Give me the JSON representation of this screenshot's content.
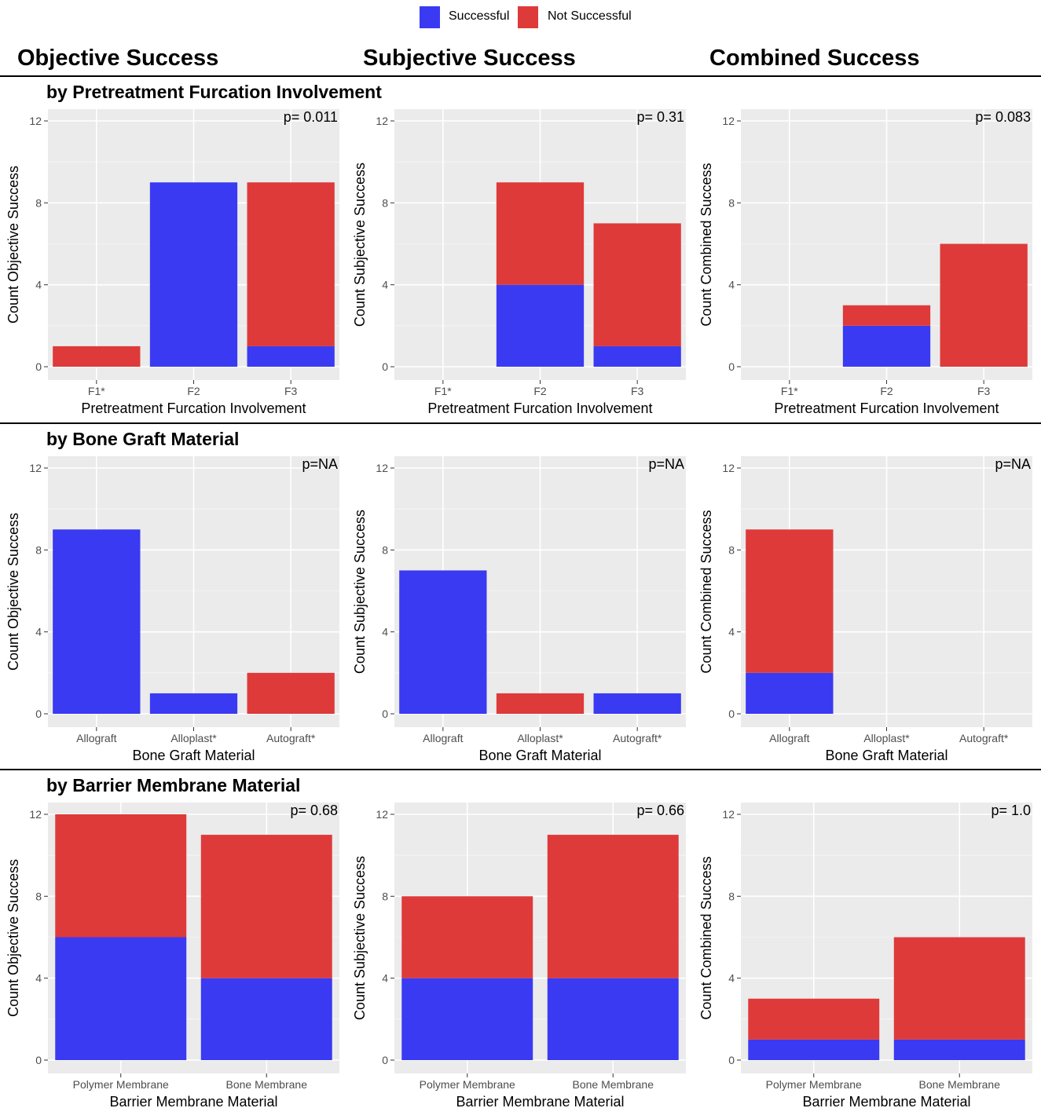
{
  "legend": {
    "successful_label": "Successful",
    "not_successful_label": "Not Successful",
    "successful_color": "#3a3af2",
    "not_successful_color": "#de3a3a"
  },
  "column_titles": [
    "Objective Success",
    "Subjective Success",
    "Combined Success"
  ],
  "row_titles": [
    "by Pretreatment Furcation Involvement",
    "by Bone Graft Material",
    "by Barrier Membrane Material"
  ],
  "chart_data": [
    {
      "id": "r1c1",
      "type": "bar",
      "stacked": true,
      "categories": [
        "F1*",
        "F2",
        "F3"
      ],
      "series": [
        {
          "name": "Successful",
          "values": [
            0,
            9,
            1
          ]
        },
        {
          "name": "Not Successful",
          "values": [
            1,
            0,
            8
          ]
        }
      ],
      "xlabel": "Pretreatment Furcation Involvement",
      "ylabel": "Count Objective Success",
      "ylim": [
        0,
        12
      ],
      "yticks": [
        0,
        4,
        8,
        12
      ],
      "annotation": "p= 0.011"
    },
    {
      "id": "r1c2",
      "type": "bar",
      "stacked": true,
      "categories": [
        "F1*",
        "F2",
        "F3"
      ],
      "series": [
        {
          "name": "Successful",
          "values": [
            0,
            4,
            1
          ]
        },
        {
          "name": "Not Successful",
          "values": [
            0,
            5,
            6
          ]
        }
      ],
      "xlabel": "Pretreatment Furcation Involvement",
      "ylabel": "Count Subjective Success",
      "ylim": [
        0,
        12
      ],
      "yticks": [
        0,
        4,
        8,
        12
      ],
      "annotation": "p= 0.31"
    },
    {
      "id": "r1c3",
      "type": "bar",
      "stacked": true,
      "categories": [
        "F1*",
        "F2",
        "F3"
      ],
      "series": [
        {
          "name": "Successful",
          "values": [
            0,
            2,
            0
          ]
        },
        {
          "name": "Not Successful",
          "values": [
            0,
            1,
            6
          ]
        }
      ],
      "xlabel": "Pretreatment Furcation Involvement",
      "ylabel": "Count Combined Success",
      "ylim": [
        0,
        12
      ],
      "yticks": [
        0,
        4,
        8,
        12
      ],
      "annotation": "p= 0.083"
    },
    {
      "id": "r2c1",
      "type": "bar",
      "stacked": true,
      "categories": [
        "Allograft",
        "Alloplast*",
        "Autograft*"
      ],
      "series": [
        {
          "name": "Successful",
          "values": [
            9,
            1,
            0
          ]
        },
        {
          "name": "Not Successful",
          "values": [
            0,
            0,
            2
          ]
        }
      ],
      "xlabel": "Bone Graft Material",
      "ylabel": "Count Objective Success",
      "ylim": [
        0,
        12
      ],
      "yticks": [
        0,
        4,
        8,
        12
      ],
      "annotation": "p=NA"
    },
    {
      "id": "r2c2",
      "type": "bar",
      "stacked": true,
      "categories": [
        "Allograft",
        "Alloplast*",
        "Autograft*"
      ],
      "series": [
        {
          "name": "Successful",
          "values": [
            7,
            0,
            1
          ]
        },
        {
          "name": "Not Successful",
          "values": [
            0,
            1,
            0
          ]
        }
      ],
      "xlabel": "Bone Graft Material",
      "ylabel": "Count Subjective Success",
      "ylim": [
        0,
        12
      ],
      "yticks": [
        0,
        4,
        8,
        12
      ],
      "annotation": "p=NA"
    },
    {
      "id": "r2c3",
      "type": "bar",
      "stacked": true,
      "categories": [
        "Allograft",
        "Alloplast*",
        "Autograft*"
      ],
      "series": [
        {
          "name": "Successful",
          "values": [
            2,
            0,
            0
          ]
        },
        {
          "name": "Not Successful",
          "values": [
            7,
            0,
            0
          ]
        }
      ],
      "xlabel": "Bone Graft Material",
      "ylabel": "Count Combined Success",
      "ylim": [
        0,
        12
      ],
      "yticks": [
        0,
        4,
        8,
        12
      ],
      "annotation": "p=NA"
    },
    {
      "id": "r3c1",
      "type": "bar",
      "stacked": true,
      "categories": [
        "Polymer Membrane",
        "Bone Membrane"
      ],
      "series": [
        {
          "name": "Successful",
          "values": [
            6,
            4
          ]
        },
        {
          "name": "Not Successful",
          "values": [
            6,
            7
          ]
        }
      ],
      "xlabel": "Barrier Membrane Material",
      "ylabel": "Count Objective Success",
      "ylim": [
        0,
        12
      ],
      "yticks": [
        0,
        4,
        8,
        12
      ],
      "annotation": "p= 0.68"
    },
    {
      "id": "r3c2",
      "type": "bar",
      "stacked": true,
      "categories": [
        "Polymer Membrane",
        "Bone Membrane"
      ],
      "series": [
        {
          "name": "Successful",
          "values": [
            4,
            4
          ]
        },
        {
          "name": "Not Successful",
          "values": [
            4,
            7
          ]
        }
      ],
      "xlabel": "Barrier Membrane Material",
      "ylabel": "Count Subjective Success",
      "ylim": [
        0,
        12
      ],
      "yticks": [
        0,
        4,
        8,
        12
      ],
      "annotation": "p= 0.66"
    },
    {
      "id": "r3c3",
      "type": "bar",
      "stacked": true,
      "categories": [
        "Polymer Membrane",
        "Bone Membrane"
      ],
      "series": [
        {
          "name": "Successful",
          "values": [
            1,
            1
          ]
        },
        {
          "name": "Not Successful",
          "values": [
            2,
            5
          ]
        }
      ],
      "xlabel": "Barrier Membrane Material",
      "ylabel": "Count Combined Success",
      "ylim": [
        0,
        12
      ],
      "yticks": [
        0,
        4,
        8,
        12
      ],
      "annotation": "p= 1.0"
    }
  ]
}
